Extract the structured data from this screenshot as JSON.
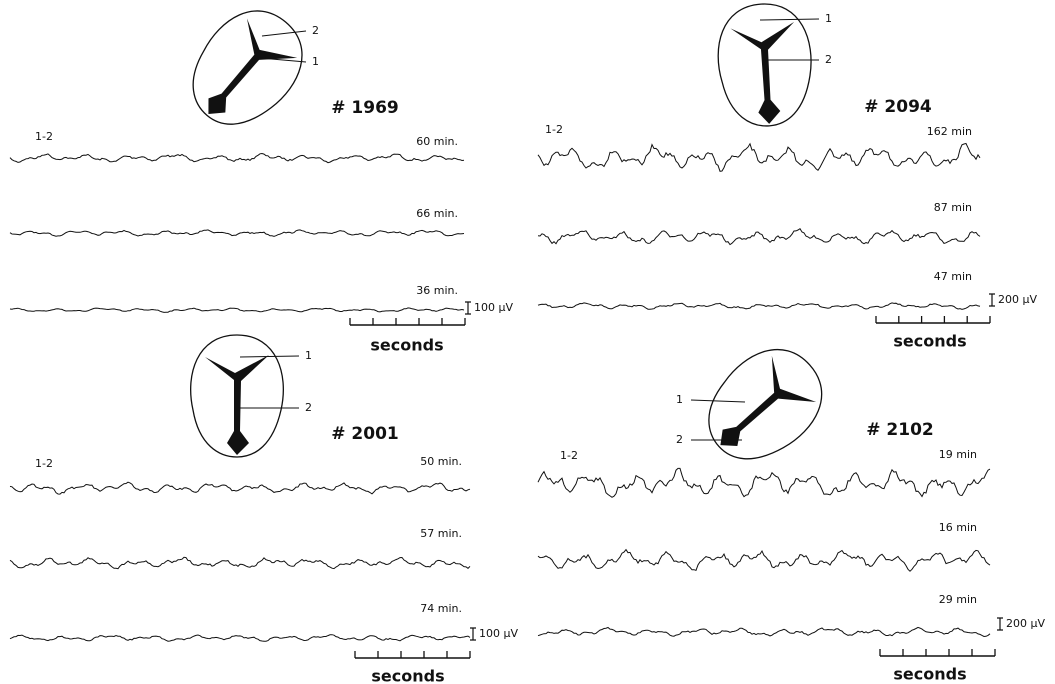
{
  "panels": [
    {
      "title": "# 1969",
      "labels": [
        "1",
        "2"
      ],
      "derivation": "1-2",
      "traces": [
        "60 min.",
        "66 min.",
        "36 min."
      ],
      "scale": "100 µV",
      "time_axis": "seconds"
    },
    {
      "title": "# 2094",
      "labels": [
        "1",
        "2"
      ],
      "derivation": "1-2",
      "traces": [
        "162 min",
        "87 min",
        "47 min"
      ],
      "scale": "200 µV",
      "time_axis": "seconds"
    },
    {
      "title": "# 2001",
      "labels": [
        "1",
        "2"
      ],
      "derivation": "1-2",
      "traces": [
        "50 min.",
        "57 min.",
        "74 min."
      ],
      "scale": "100 µV",
      "time_axis": "seconds"
    },
    {
      "title": "# 2102",
      "labels": [
        "1",
        "2"
      ],
      "derivation": "1-2",
      "traces": [
        "19 min",
        "16 min",
        "29 min"
      ],
      "scale": "200 µV",
      "time_axis": "seconds"
    }
  ]
}
